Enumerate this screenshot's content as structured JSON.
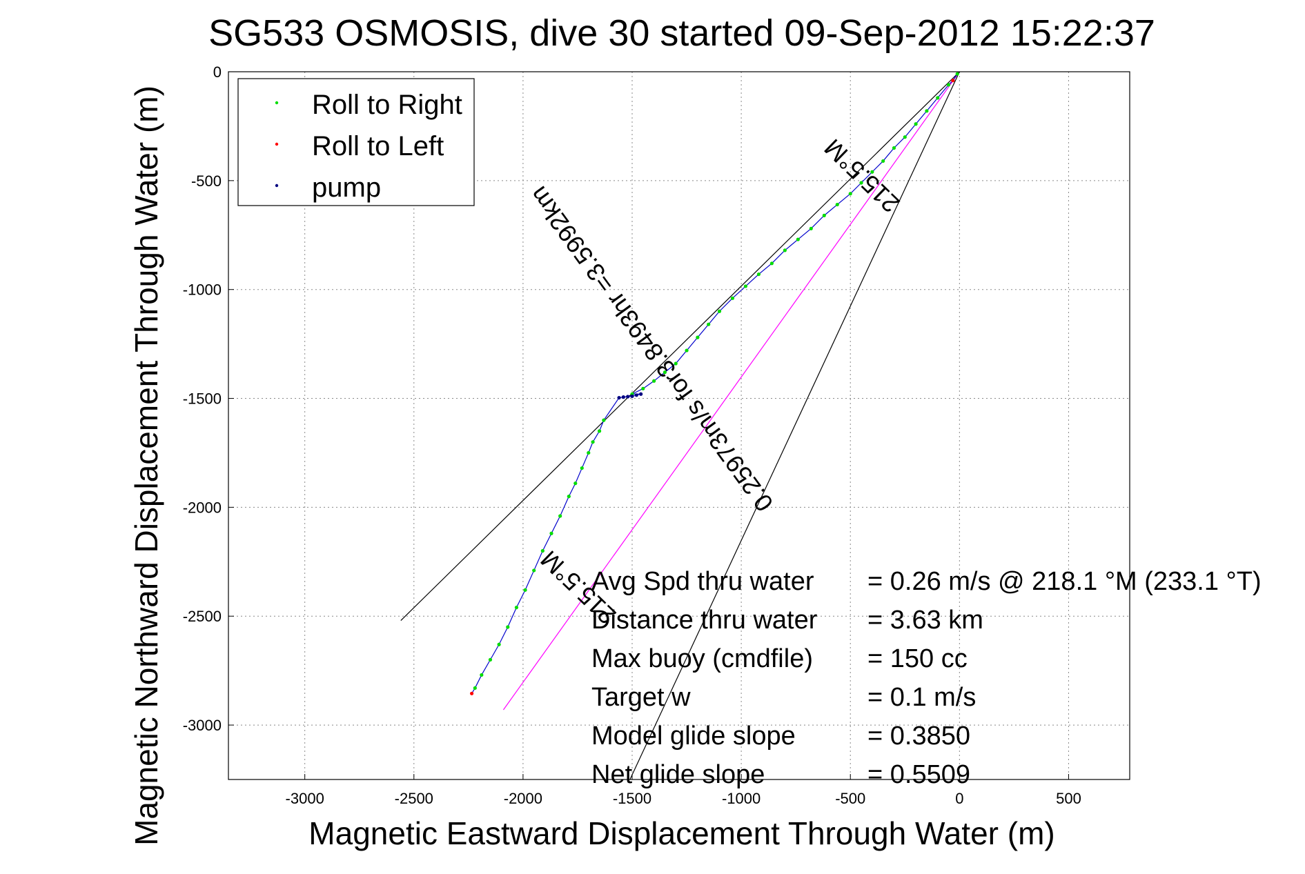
{
  "chart_data": {
    "type": "scatter",
    "title": "SG533 OSMOSIS, dive 30 started 09-Sep-2012 15:22:37",
    "xlabel": "Magnetic Eastward Displacement Through Water (m)",
    "ylabel": "Magnetic Northward Displacement Through Water (m)",
    "xlim": [
      -3350,
      780
    ],
    "ylim": [
      -3250,
      0
    ],
    "x_ticks": [
      -3000,
      -2500,
      -2000,
      -1500,
      -1000,
      -500,
      0,
      500
    ],
    "x_tick_labels": [
      "-3000",
      "-2500",
      "-2000",
      "-1500",
      "-1000",
      "-500",
      "0",
      "500"
    ],
    "y_ticks": [
      0,
      -500,
      -1000,
      -1500,
      -2000,
      -2500,
      -3000
    ],
    "y_tick_labels": [
      "0",
      "-500",
      "-1000",
      "-1500",
      "-2000",
      "-2500",
      "-3000"
    ],
    "grid": true,
    "legend_placement": "top-left",
    "series": [
      {
        "name": "Roll to Right",
        "color": "#00dd00",
        "points": [
          [
            -10,
            -10
          ],
          [
            -50,
            -60
          ],
          [
            -100,
            -120
          ],
          [
            -150,
            -180
          ],
          [
            -200,
            -240
          ],
          [
            -250,
            -300
          ],
          [
            -300,
            -350
          ],
          [
            -350,
            -410
          ],
          [
            -400,
            -460
          ],
          [
            -450,
            -510
          ],
          [
            -500,
            -560
          ],
          [
            -560,
            -610
          ],
          [
            -620,
            -660
          ],
          [
            -680,
            -720
          ],
          [
            -740,
            -770
          ],
          [
            -800,
            -820
          ],
          [
            -860,
            -880
          ],
          [
            -920,
            -930
          ],
          [
            -980,
            -985
          ],
          [
            -1040,
            -1040
          ],
          [
            -1100,
            -1100
          ],
          [
            -1150,
            -1160
          ],
          [
            -1200,
            -1220
          ],
          [
            -1250,
            -1280
          ],
          [
            -1300,
            -1340
          ],
          [
            -1350,
            -1380
          ],
          [
            -1400,
            -1420
          ],
          [
            -1450,
            -1455
          ],
          [
            -1500,
            -1480
          ],
          [
            -1630,
            -1600
          ],
          [
            -1650,
            -1650
          ],
          [
            -1680,
            -1700
          ],
          [
            -1700,
            -1750
          ],
          [
            -1730,
            -1820
          ],
          [
            -1760,
            -1890
          ],
          [
            -1790,
            -1950
          ],
          [
            -1830,
            -2040
          ],
          [
            -1870,
            -2120
          ],
          [
            -1910,
            -2200
          ],
          [
            -1950,
            -2290
          ],
          [
            -1990,
            -2380
          ],
          [
            -2030,
            -2460
          ],
          [
            -2070,
            -2550
          ],
          [
            -2110,
            -2630
          ],
          [
            -2150,
            -2700
          ],
          [
            -2190,
            -2770
          ],
          [
            -2220,
            -2830
          ]
        ]
      },
      {
        "name": "Roll to Left",
        "color": "#ff0000",
        "points": [
          [
            -30,
            -40
          ],
          [
            -2235,
            -2855
          ]
        ]
      },
      {
        "name": "pump",
        "color": "#000080",
        "points": [
          [
            -1460,
            -1480
          ],
          [
            -1480,
            -1485
          ],
          [
            -1500,
            -1490
          ],
          [
            -1520,
            -1492
          ],
          [
            -1540,
            -1494
          ],
          [
            -1560,
            -1497
          ]
        ]
      }
    ],
    "annotation_lines": [
      {
        "color": "#000000",
        "from": [
          0,
          0
        ],
        "to": [
          -2560,
          -2520
        ]
      },
      {
        "color": "#ff00ff",
        "from": [
          0,
          0
        ],
        "to": [
          -2090,
          -2930
        ]
      },
      {
        "color": "#000000",
        "from": [
          0,
          0
        ],
        "to": [
          -1510,
          -3250
        ]
      }
    ],
    "line_labels": [
      {
        "text": "215.5°M",
        "at": [
          -420,
          -450
        ]
      },
      {
        "text": "0.25973m/s for3.8493hr =3.5992km",
        "at": [
          -1380,
          -1250
        ]
      },
      {
        "text": "215.5°M",
        "at": [
          -1720,
          -2340
        ]
      }
    ],
    "stats": [
      {
        "label": "Avg Spd thru water",
        "value": "=  0.26 m/s @ 218.1 °M (233.1 °T)"
      },
      {
        "label": "Distance thru water",
        "value": "=  3.63 km"
      },
      {
        "label": "Max buoy (cmdfile)",
        "value": "= 150 cc"
      },
      {
        "label": "Target w",
        "value": "= 0.1 m/s"
      },
      {
        "label": "Model glide slope",
        "value": "= 0.3850"
      },
      {
        "label": "Net glide slope",
        "value": "= 0.5509"
      }
    ]
  }
}
